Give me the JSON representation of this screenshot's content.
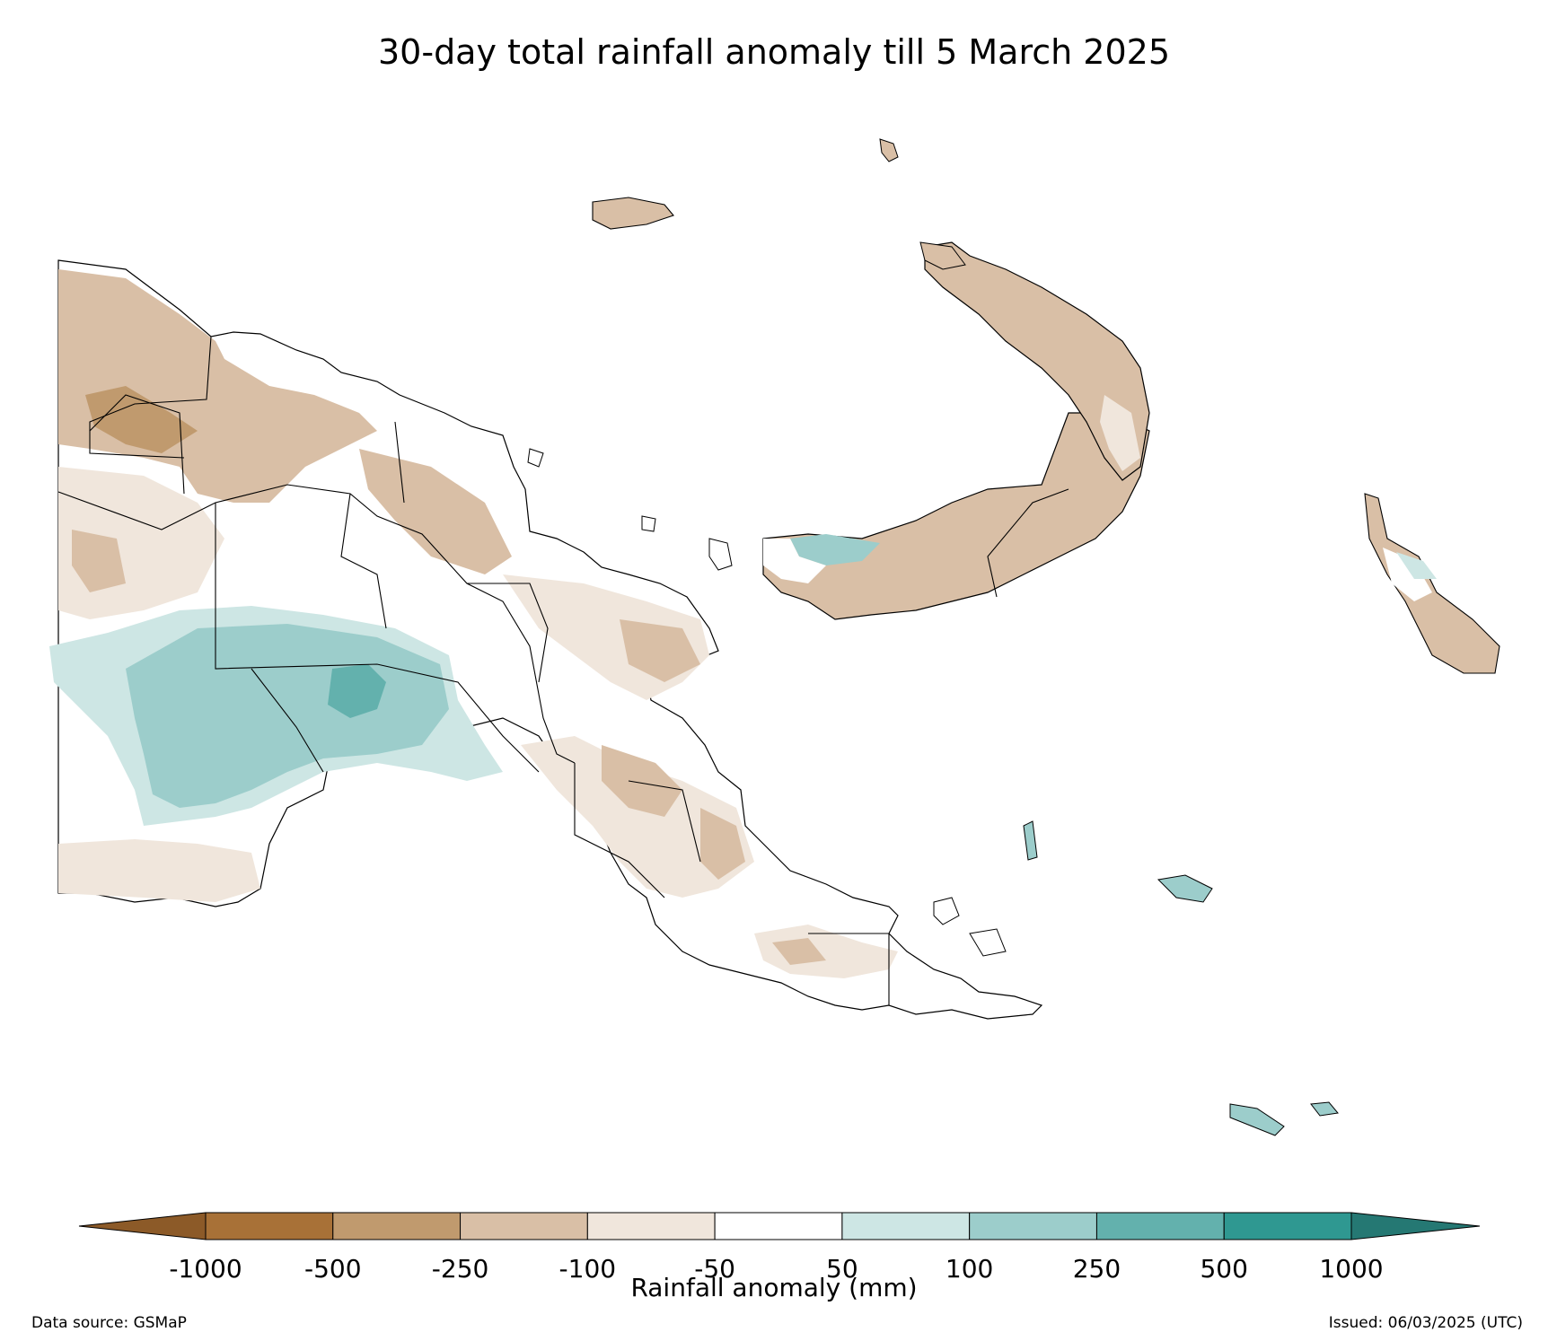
{
  "title": "30-day total rainfall anomaly till 5 March 2025",
  "colorbar": {
    "title": "Rainfall anomaly (mm)",
    "tick_labels": [
      "-1000",
      "-500",
      "-250",
      "-100",
      "-50",
      "50",
      "100",
      "250",
      "500",
      "1000"
    ],
    "colors": {
      "below_-1000": "#8c5a28",
      "-1000_-500": "#a87137",
      "-500_-250": "#c09a6e",
      "-250_-100": "#d9bfa6",
      "-100_-50": "#f0e6dc",
      "-50_50": "#ffffff",
      "50_100": "#cde6e4",
      "100_250": "#9ccdcb",
      "250_500": "#63b1ad",
      "500_1000": "#2f9891",
      "above_1000": "#257873"
    }
  },
  "footer": {
    "source": "Data source: GSMaP",
    "issued": "Issued: 06/03/2025 (UTC)"
  }
}
